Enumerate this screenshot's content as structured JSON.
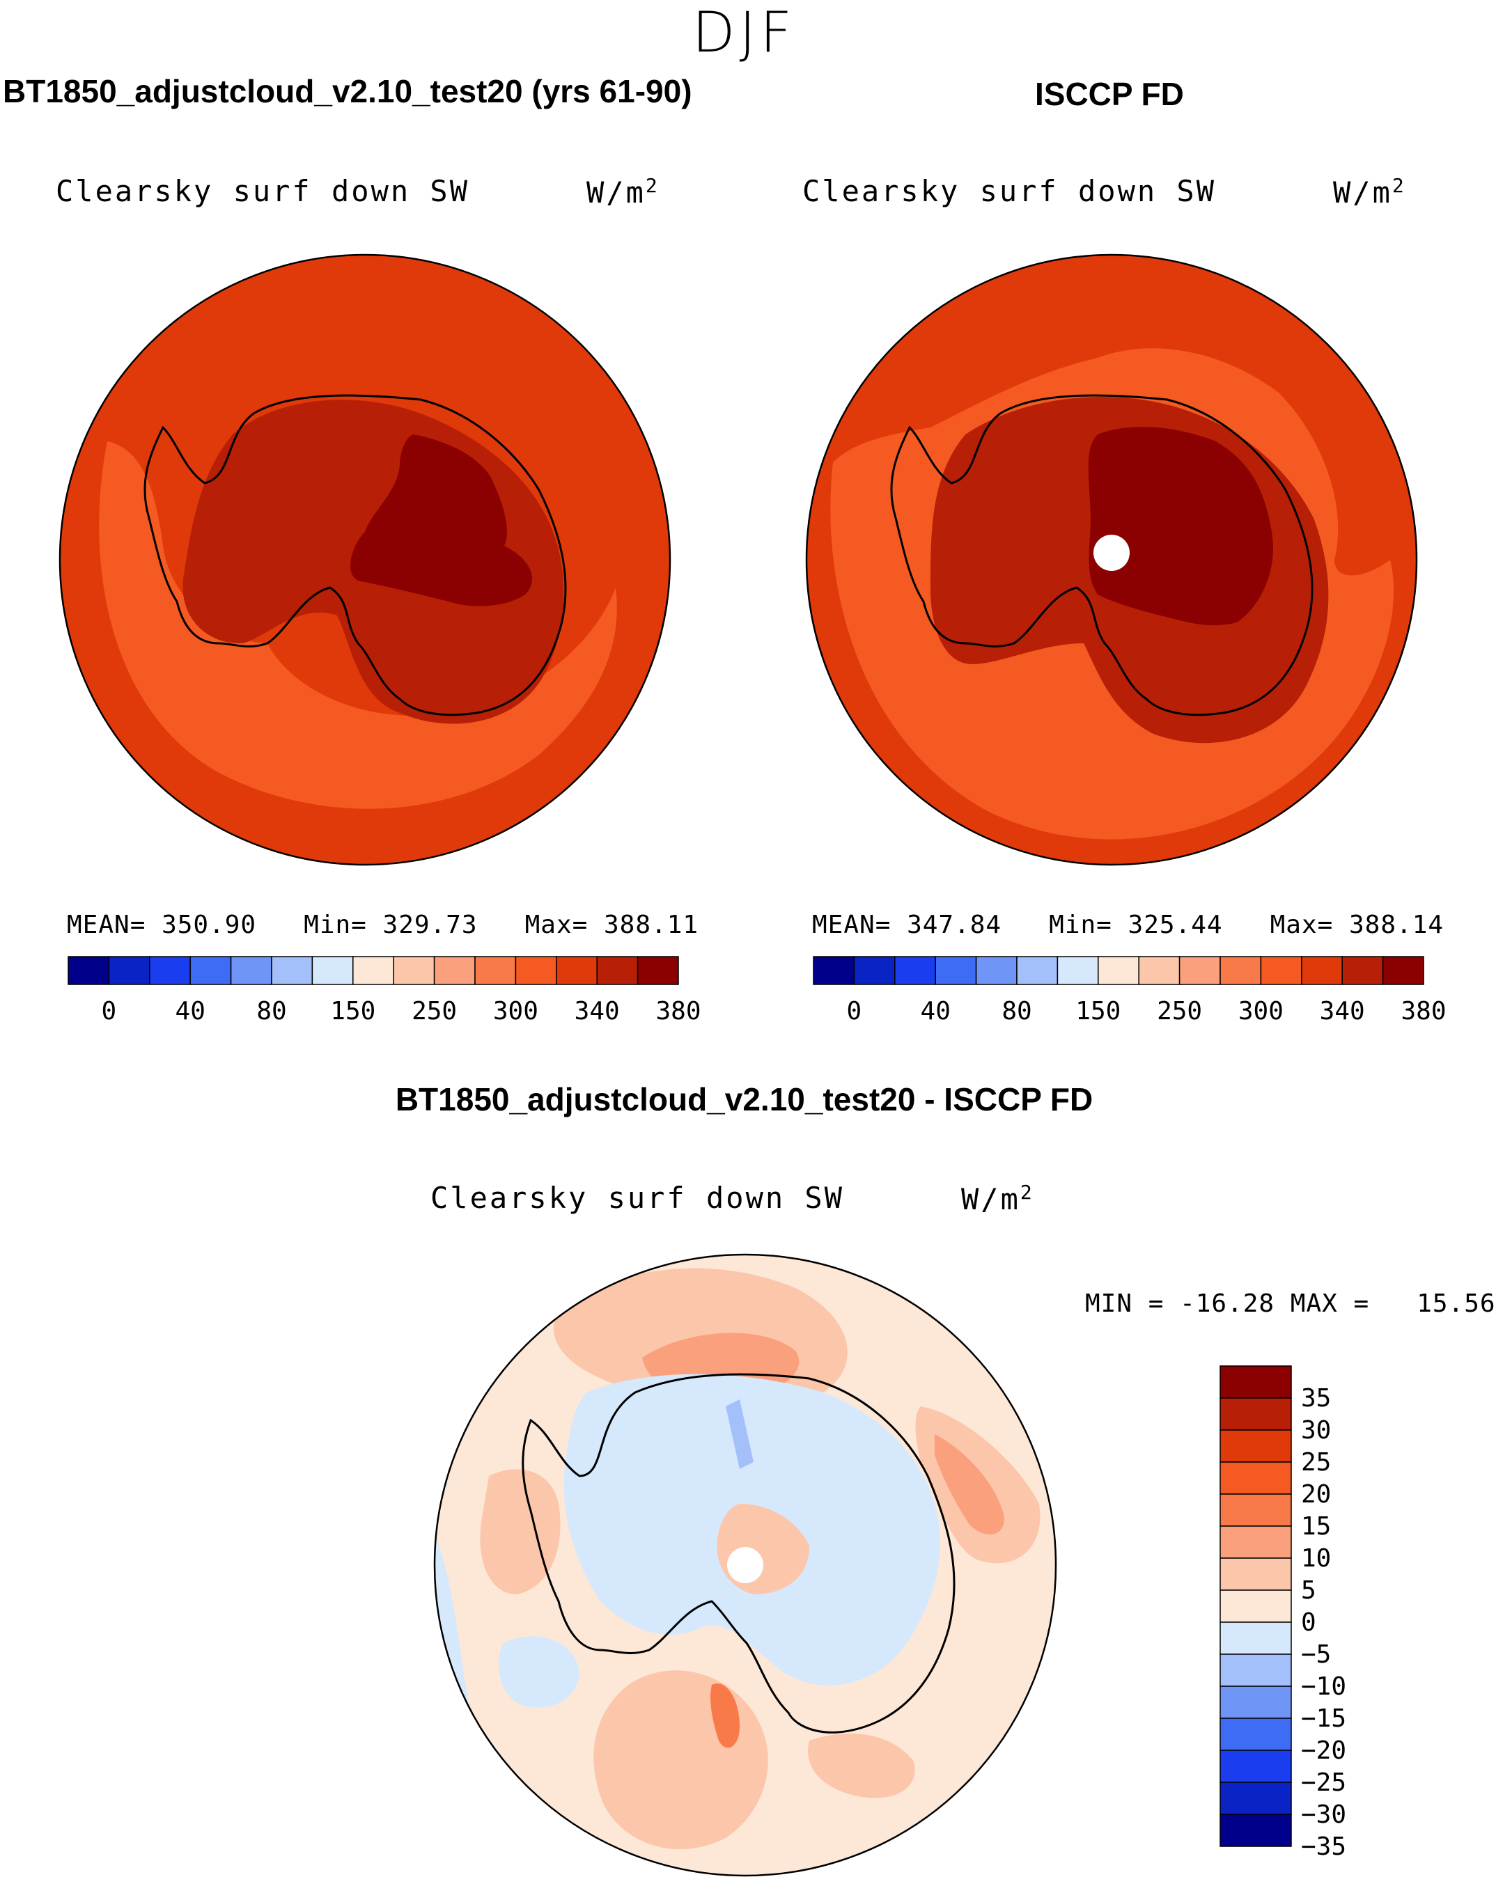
{
  "season": "DJF",
  "panels": {
    "model": {
      "title": "BT1850_adjustcloud_v2.10_test20 (yrs 61-90)",
      "variable": "Clearsky surf down SW",
      "units_base": "W/m",
      "units_exp": "2",
      "mean_label": "MEAN=",
      "mean_value": "350.90",
      "min_label": "Min=",
      "min_value": "329.73",
      "max_label": "Max=",
      "max_value": "388.11"
    },
    "obs": {
      "title": "ISCCP FD",
      "variable": "Clearsky surf down SW",
      "units_base": "W/m",
      "units_exp": "2",
      "mean_label": "MEAN=",
      "mean_value": "347.84",
      "min_label": "Min=",
      "min_value": "325.44",
      "max_label": "Max=",
      "max_value": "388.14"
    },
    "diff": {
      "title": "BT1850_adjustcloud_v2.10_test20 - ISCCP FD",
      "variable": "Clearsky surf down SW",
      "units_base": "W/m",
      "units_exp": "2",
      "min_label": "MIN =",
      "min_value": "-16.28",
      "max_label": "MAX =",
      "max_value": "15.56"
    }
  },
  "colorbar_abs": {
    "colors": [
      "#00008b",
      "#0a23c4",
      "#1a3df0",
      "#3f6cf5",
      "#6f95f7",
      "#a4c0fa",
      "#d6e8fb",
      "#fde8d8",
      "#fcc6aa",
      "#fba07c",
      "#f97a49",
      "#f55a22",
      "#e03a0a",
      "#b72006",
      "#8b0000"
    ],
    "tick_labels": [
      "0",
      "40",
      "80",
      "150",
      "250",
      "300",
      "340",
      "380"
    ]
  },
  "colorbar_diff": {
    "colors": [
      "#8b0000",
      "#b72006",
      "#e03a0a",
      "#f55a22",
      "#f97a49",
      "#fba07c",
      "#fcc6aa",
      "#fde8d8",
      "#d6e8fb",
      "#a4c0fa",
      "#6f95f7",
      "#3f6cf5",
      "#1a3df0",
      "#0a23c4",
      "#00008b"
    ],
    "tick_labels": [
      "35",
      "30",
      "25",
      "20",
      "15",
      "10",
      "5",
      "0",
      "−5",
      "−10",
      "−15",
      "−20",
      "−25",
      "−30",
      "−35"
    ]
  },
  "map_colors": {
    "ocean_abs": "#e03a0a",
    "ring_abs": "#f55a22",
    "coast_abs": "#b72006",
    "interior_abs": "#8b0000",
    "diff_base": "#fde8d8",
    "diff_pos": "#fcc6aa",
    "diff_pos2": "#fba07c",
    "diff_pos3": "#f97a49",
    "diff_neg": "#d6e8fb",
    "diff_neg2": "#a4c0fa",
    "diff_neg3": "#6f95f7"
  }
}
